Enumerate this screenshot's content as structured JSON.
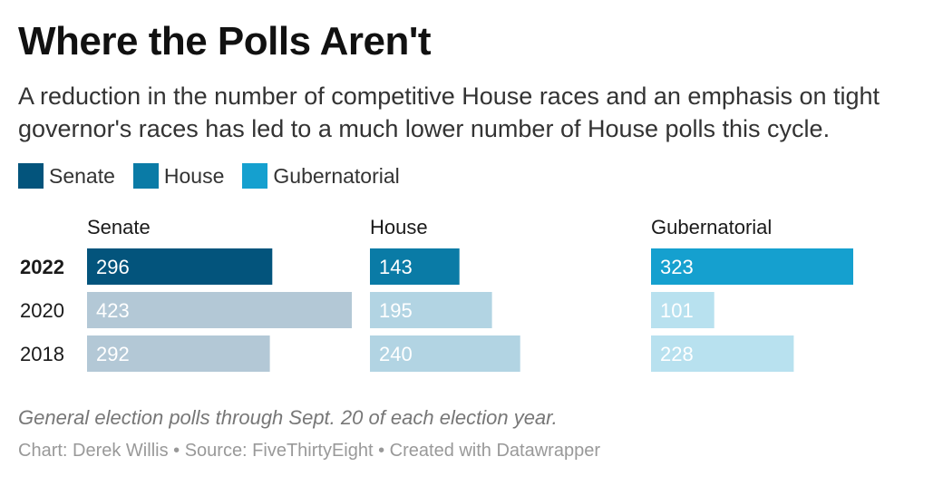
{
  "title": "Where the Polls Aren't",
  "subtitle": "A reduction in the number of competitive House races and an emphasis on tight governor's races has led to a much lower number of House polls this cycle.",
  "legend": [
    {
      "label": "Senate",
      "color": "#03547c"
    },
    {
      "label": "House",
      "color": "#0a7ba6"
    },
    {
      "label": "Gubernatorial",
      "color": "#15a0cf"
    }
  ],
  "chart_data": {
    "type": "bar",
    "orientation": "horizontal",
    "layout": "small-multiples",
    "categories": [
      "2022",
      "2020",
      "2018"
    ],
    "highlight_category": "2022",
    "series": [
      {
        "name": "Senate",
        "values": [
          296,
          423,
          292
        ],
        "color": "#03547c",
        "muted_color": "#b3c8d6"
      },
      {
        "name": "House",
        "values": [
          143,
          195,
          240
        ],
        "color": "#0a7ba6",
        "muted_color": "#b2d4e3"
      },
      {
        "name": "Gubernatorial",
        "values": [
          323,
          101,
          228
        ],
        "color": "#15a0cf",
        "muted_color": "#b8e1ef"
      }
    ],
    "xlim": [
      0,
      430
    ],
    "grid": false,
    "legend_position": "top-left"
  },
  "note": "General election polls through Sept. 20 of each election year.",
  "credits": "Chart: Derek Willis • Source: FiveThirtyEight • Created with Datawrapper"
}
